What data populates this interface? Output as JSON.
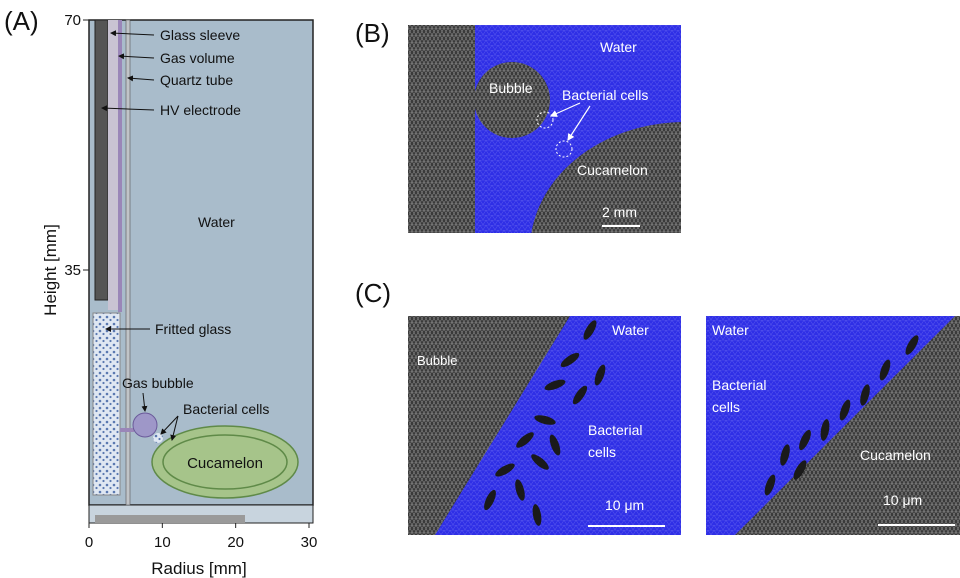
{
  "panel_a": {
    "label": "(A)",
    "x_axis": {
      "title": "Radius [mm]",
      "ticks": [
        0,
        10,
        20,
        30
      ],
      "lim": [
        0,
        30
      ]
    },
    "y_axis": {
      "title": "Height [mm]",
      "ticks": [
        35,
        70
      ],
      "lim": [
        0,
        70
      ]
    },
    "labels": {
      "glass_sleeve": "Glass sleeve",
      "gas_volume": "Gas volume",
      "quartz_tube": "Quartz tube",
      "hv_electrode": "HV electrode",
      "water": "Water",
      "fritted_glass": "Fritted glass",
      "gas_bubble": "Gas bubble",
      "bacterial_cells": "Bacterial cells",
      "cucamelon": "Cucamelon"
    }
  },
  "panel_b": {
    "label": "(B)",
    "water": "Water",
    "bubble": "Bubble",
    "bacterial_cells": "Bacterial cells",
    "cucamelon": "Cucamelon",
    "scale": "2 mm"
  },
  "panel_c": {
    "label": "(C)",
    "left": {
      "water": "Water",
      "bubble": "Bubble",
      "bacterial_cells": [
        "Bacterial",
        "cells"
      ],
      "scale": "10 μm"
    },
    "right": {
      "water": "Water",
      "bacterial_cells": [
        "Bacterial",
        "cells"
      ],
      "cucamelon": "Cucamelon",
      "scale": "10 μm"
    }
  }
}
